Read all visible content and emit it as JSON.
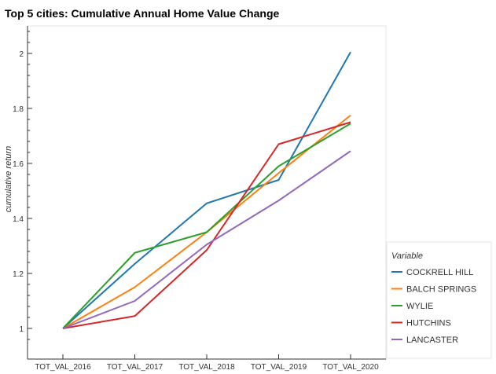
{
  "chart_data": {
    "type": "line",
    "title": "Top 5 cities: Cumulative Annual Home Value Change",
    "xlabel": "",
    "ylabel": "cumulative return",
    "categories": [
      "TOT_VAL_2016",
      "TOT_VAL_2017",
      "TOT_VAL_2018",
      "TOT_VAL_2019",
      "TOT_VAL_2020"
    ],
    "ylim": [
      0.95,
      2.1
    ],
    "yticks": [
      1,
      1.2,
      1.4,
      1.6,
      1.8,
      2
    ],
    "ytick_labels": [
      "1",
      "1.2",
      "1.4",
      "1.6",
      "1.8",
      "2"
    ],
    "grid": false,
    "legend_title": "Variable",
    "legend_position": "outside-right-bottom",
    "series": [
      {
        "name": "COCKRELL HILL",
        "color": "#1f77b4",
        "values": [
          1.0,
          1.235,
          1.455,
          1.54,
          2.005
        ]
      },
      {
        "name": "BALCH SPRINGS",
        "color": "#ff7f0e",
        "values": [
          1.0,
          1.15,
          1.35,
          1.565,
          1.775
        ]
      },
      {
        "name": "WYLIE",
        "color": "#2ca02c",
        "values": [
          1.0,
          1.275,
          1.35,
          1.59,
          1.745
        ]
      },
      {
        "name": "HUTCHINS",
        "color": "#d62728",
        "values": [
          1.0,
          1.045,
          1.285,
          1.67,
          1.75
        ]
      },
      {
        "name": "LANCASTER",
        "color": "#9467bd",
        "values": [
          1.0,
          1.1,
          1.305,
          1.465,
          1.645
        ]
      }
    ]
  }
}
